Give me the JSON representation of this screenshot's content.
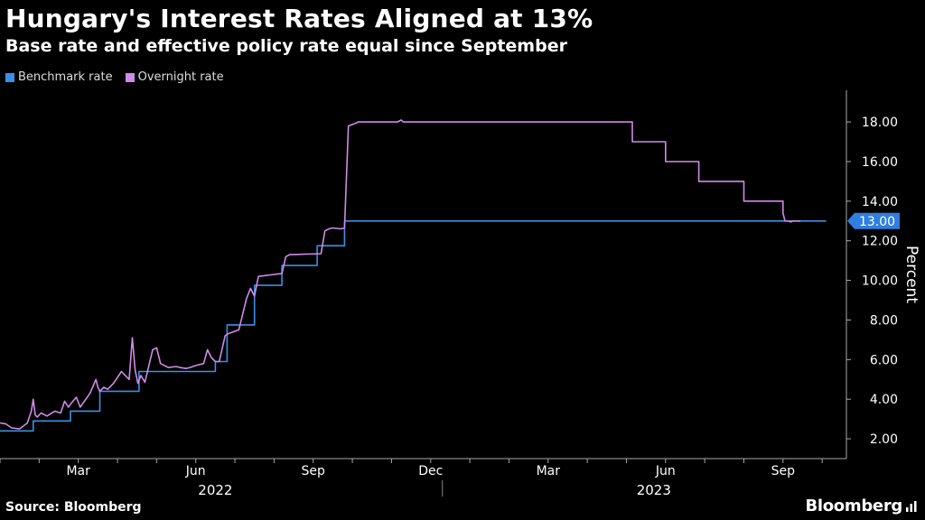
{
  "header": {
    "title": "Hungary's Interest Rates Aligned at 13%",
    "subtitle": "Base rate and effective policy rate equal since September"
  },
  "footer": {
    "source": "Source: Bloomberg",
    "brand": "Bloomberg"
  },
  "colors": {
    "benchmark": "#3b8fe6",
    "overnight": "#d08ae8",
    "label_bg": "#2f7fe0"
  },
  "chart_data": {
    "type": "line",
    "title": "Hungary's Interest Rates Aligned at 13%",
    "ylabel": "Percent",
    "ylim": [
      1,
      19.6
    ],
    "yticks": [
      "2.00",
      "4.00",
      "6.00",
      "8.00",
      "10.00",
      "12.00",
      "14.00",
      "16.00",
      "18.00"
    ],
    "ytick_values": [
      2,
      4,
      6,
      8,
      10,
      12,
      14,
      16,
      18
    ],
    "xlim": [
      0,
      21.55
    ],
    "xticks": [
      {
        "label": "Mar",
        "x": 2.0
      },
      {
        "label": "Jun",
        "x": 5.0
      },
      {
        "label": "Sep",
        "x": 8.0
      },
      {
        "label": "Dec",
        "x": 11.0
      },
      {
        "label": "Mar",
        "x": 14.0
      },
      {
        "label": "Jun",
        "x": 17.0
      },
      {
        "label": "Sep",
        "x": 20.0
      }
    ],
    "year_labels": [
      {
        "label": "2022",
        "x": 5.5
      },
      {
        "label": "2023",
        "x": 16.7
      }
    ],
    "last_value_label": "13.00",
    "series": [
      {
        "name": "Benchmark rate",
        "x": [
          0,
          0.85,
          0.85,
          1.8,
          1.8,
          2.55,
          2.55,
          3.55,
          3.55,
          5.5,
          5.5,
          5.8,
          5.8,
          6.5,
          6.5,
          7.2,
          7.2,
          8.1,
          8.1,
          8.8,
          8.8,
          21.1
        ],
        "values": [
          2.4,
          2.4,
          2.9,
          2.9,
          3.4,
          3.4,
          4.4,
          4.4,
          5.4,
          5.4,
          5.9,
          5.9,
          7.75,
          7.75,
          9.75,
          9.75,
          10.75,
          10.75,
          11.75,
          11.75,
          13.0,
          13.0
        ]
      },
      {
        "name": "Overnight rate",
        "x": [
          0,
          0.15,
          0.3,
          0.5,
          0.7,
          0.8,
          0.85,
          0.9,
          0.95,
          1.05,
          1.2,
          1.4,
          1.55,
          1.65,
          1.75,
          1.82,
          1.95,
          2.05,
          2.3,
          2.45,
          2.5,
          2.55,
          2.65,
          2.75,
          2.9,
          3.1,
          3.3,
          3.38,
          3.45,
          3.52,
          3.6,
          3.7,
          3.9,
          4.0,
          4.1,
          4.3,
          4.5,
          4.6,
          4.75,
          4.85,
          5.0,
          5.2,
          5.3,
          5.4,
          5.5,
          5.6,
          5.75,
          5.82,
          6.1,
          6.3,
          6.4,
          6.5,
          6.6,
          7.0,
          7.2,
          7.3,
          7.4,
          8.2,
          8.3,
          8.4,
          8.5,
          8.7,
          8.8,
          8.9,
          9.1,
          9.15,
          10.15,
          10.2,
          10.25,
          10.3,
          12.5,
          16.15,
          16.15,
          17.0,
          17.0,
          17.85,
          17.85,
          19.0,
          19.0,
          20.0,
          20.0,
          20.05,
          20.15,
          20.2,
          20.25,
          20.45
        ],
        "values": [
          2.8,
          2.75,
          2.55,
          2.5,
          2.8,
          3.4,
          4.0,
          3.2,
          3.1,
          3.3,
          3.15,
          3.4,
          3.3,
          3.9,
          3.6,
          3.8,
          4.1,
          3.6,
          4.3,
          5.0,
          4.6,
          4.4,
          4.6,
          4.5,
          4.8,
          5.4,
          5.0,
          7.1,
          5.5,
          4.8,
          5.2,
          4.85,
          6.5,
          6.6,
          5.8,
          5.6,
          5.65,
          5.6,
          5.55,
          5.6,
          5.7,
          5.8,
          6.5,
          6.1,
          5.9,
          5.9,
          7.2,
          7.3,
          7.5,
          9.1,
          9.6,
          9.2,
          10.2,
          10.3,
          10.35,
          11.2,
          11.3,
          11.35,
          12.5,
          12.6,
          12.65,
          12.6,
          12.65,
          17.8,
          17.95,
          18.0,
          18.0,
          18.05,
          18.1,
          18.0,
          18.0,
          18.0,
          17.0,
          17.0,
          16.0,
          16.0,
          15.0,
          15.0,
          14.0,
          14.0,
          13.4,
          13.0,
          13.0,
          12.95,
          13.0,
          13.0
        ]
      }
    ]
  }
}
